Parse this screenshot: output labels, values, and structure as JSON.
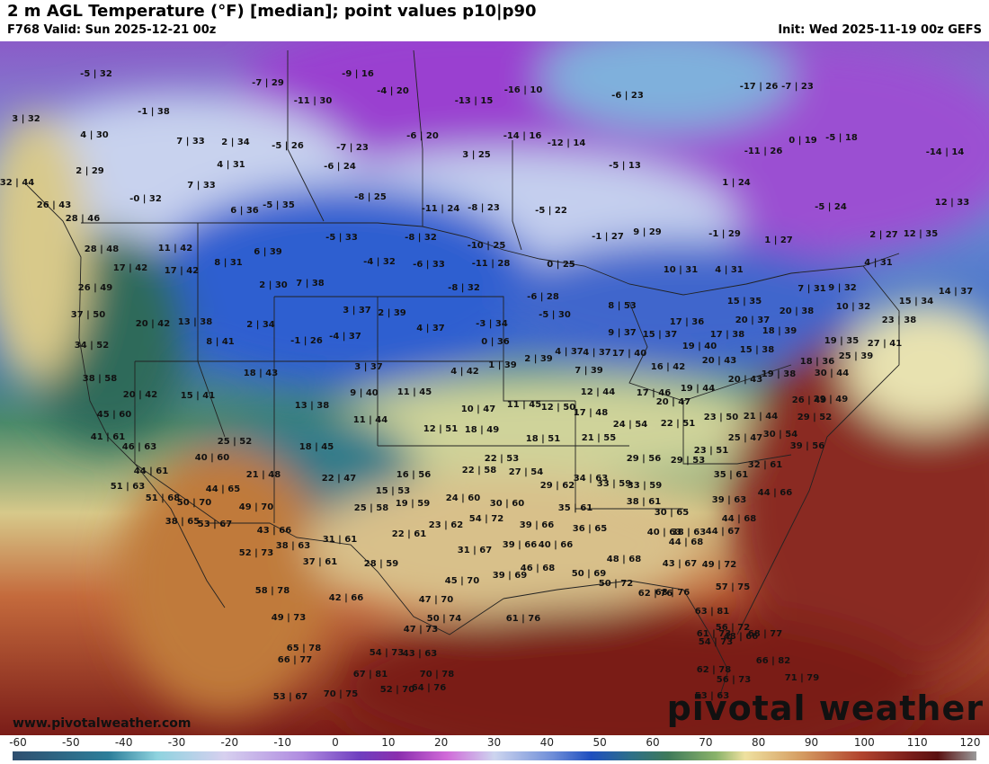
{
  "header": {
    "title": "2 m AGL Temperature (°F) [median]; point values p10|p90",
    "valid": "F768 Valid: Sun 2025-12-21 00z",
    "init": "Init: Wed 2025-11-19 00z GEFS"
  },
  "watermark": {
    "site": "www.pivotalweather.com",
    "brand": "pivotal weather"
  },
  "colorbar": {
    "ticks": [
      "-60",
      "-50",
      "-40",
      "-30",
      "-20",
      "-10",
      "0",
      "10",
      "20",
      "30",
      "40",
      "50",
      "60",
      "70",
      "80",
      "90",
      "100",
      "110",
      "120"
    ]
  },
  "points": [
    "-5 | 32",
    "-7 | 29",
    "-9 | 16",
    "-4 | 20",
    "-16 | 10",
    "-6 | 23",
    "-17 | 26",
    "-7 | 23",
    "3 | 32",
    "-1 | 38",
    "-13 | 15",
    "-11 | 30",
    "4 | 30",
    "7 | 33",
    "2 | 34",
    "-5 | 26",
    "-7 | 23",
    "-6 | 20",
    "-14 | 16",
    "-12 | 14",
    "0 | 19",
    "-5 | 18",
    "2 | 29",
    "4 | 31",
    "-6 | 24",
    "3 | 25",
    "-5 | 13",
    "-11 | 26",
    "-14 | 14",
    "32 | 44",
    "7 | 33",
    "-8 | 25",
    "1 | 24",
    "-0 | 32",
    "26 | 43",
    "6 | 36",
    "-5 | 35",
    "-11 | 24",
    "-8 | 23",
    "-5 | 22",
    "-5 | 24",
    "12 | 33",
    "28 | 46",
    "9 | 29",
    "-1 | 29",
    "1 | 27",
    "2 | 27",
    "12 | 35",
    "28 | 48",
    "11 | 42",
    "6 | 39",
    "-5 | 33",
    "-8 | 32",
    "-10 | 25",
    "-1 | 27",
    "17 | 42",
    "17 | 42",
    "8 | 31",
    "-4 | 32",
    "-6 | 33",
    "-11 | 28",
    "0 | 25",
    "10 | 31",
    "4 | 31",
    "4 | 31",
    "26 | 49",
    "2 | 30",
    "7 | 38",
    "-8 | 32",
    "-6 | 28",
    "14 | 37",
    "7 | 31",
    "9 | 32",
    "15 | 34",
    "37 | 50",
    "20 | 42",
    "13 | 38",
    "8 | 53",
    "15 | 35",
    "10 | 32",
    "20 | 38",
    "3 | 37",
    "2 | 39",
    "-5 | 30",
    "17 | 36",
    "20 | 37",
    "23 | 38",
    "2 | 34",
    "-4 | 37",
    "-1 | 26",
    "4 | 37",
    "-3 | 34",
    "9 | 37",
    "15 | 37",
    "17 | 38",
    "18 | 39",
    "34 | 52",
    "8 | 41",
    "0 | 36",
    "4 | 37",
    "19 | 40",
    "15 | 38",
    "19 | 35",
    "27 | 41",
    "18 | 43",
    "3 | 37",
    "2 | 39",
    "4 | 37",
    "17 | 40",
    "16 | 42",
    "20 | 43",
    "18 | 36",
    "25 | 39",
    "38 | 58",
    "4 | 42",
    "1 | 39",
    "7 | 39",
    "19 | 38",
    "30 | 44",
    "20 | 42",
    "15 | 41",
    "9 | 40",
    "11 | 45",
    "12 | 44",
    "17 | 46",
    "19 | 44",
    "20 | 43",
    "13 | 38",
    "10 | 47",
    "11 | 45",
    "12 | 50",
    "20 | 47",
    "26 | 49",
    "29 | 49",
    "45 | 60",
    "11 | 44",
    "17 | 48",
    "24 | 54",
    "23 | 50",
    "21 | 44",
    "29 | 52",
    "41 | 61",
    "12 | 51",
    "18 | 49",
    "18 | 51",
    "21 | 55",
    "22 | 51",
    "25 | 47",
    "30 | 54",
    "46 | 63",
    "25 | 52",
    "18 | 45",
    "22 | 53",
    "29 | 56",
    "23 | 51",
    "39 | 56",
    "40 | 60",
    "29 | 53",
    "44 | 61",
    "21 | 48",
    "22 | 58",
    "27 | 54",
    "34 | 63",
    "32 | 61",
    "51 | 63",
    "22 | 47",
    "16 | 56",
    "29 | 62",
    "33 | 59",
    "35 | 61",
    "44 | 65",
    "15 | 53",
    "33 | 59",
    "44 | 66",
    "51 | 68",
    "24 | 60",
    "38 | 61",
    "39 | 63",
    "50 | 70",
    "49 | 70",
    "25 | 58",
    "19 | 59",
    "30 | 60",
    "35 | 61",
    "38 | 65",
    "53 | 67",
    "54 | 72",
    "30 | 65",
    "39 | 66",
    "40 | 63",
    "44 | 68",
    "43 | 66",
    "23 | 62",
    "36 | 65",
    "38 | 63",
    "44 | 67",
    "38 | 63",
    "31 | 61",
    "22 | 61",
    "39 | 66",
    "40 | 66",
    "44 | 68",
    "52 | 73",
    "37 | 61",
    "31 | 67",
    "48 | 68",
    "43 | 67",
    "49 | 72",
    "28 | 59",
    "46 | 68",
    "50 | 69",
    "58 | 78",
    "45 | 70",
    "39 | 69",
    "50 | 72",
    "42 | 66",
    "47 | 70",
    "62 | 76",
    "68 | 76",
    "57 | 75",
    "63 | 81",
    "49 | 73",
    "50 | 74",
    "61 | 76",
    "56 | 72",
    "48 | 66",
    "47 | 73",
    "61 | 73",
    "68 | 77",
    "65 | 78",
    "54 | 73",
    "43 | 63",
    "54 | 73",
    "66 | 77",
    "66 | 82",
    "67 | 81",
    "70 | 78",
    "62 | 78",
    "56 | 73",
    "71 | 79",
    "53 | 67",
    "52 | 70",
    "64 | 76",
    "70 | 75",
    "53 | 63",
    "58 | 77",
    "64 | 74",
    "51 | 69"
  ]
}
